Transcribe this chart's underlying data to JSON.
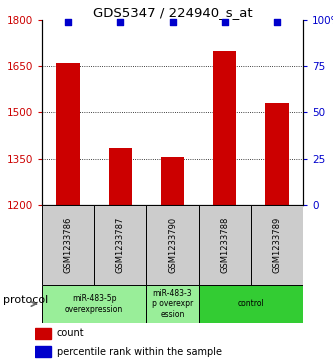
{
  "title": "GDS5347 / 224940_s_at",
  "samples": [
    "GSM1233786",
    "GSM1233787",
    "GSM1233790",
    "GSM1233788",
    "GSM1233789"
  ],
  "counts": [
    1660,
    1385,
    1355,
    1700,
    1530
  ],
  "percentiles": [
    99,
    99,
    99,
    99,
    99
  ],
  "ylim_left": [
    1200,
    1800
  ],
  "ylim_right": [
    0,
    100
  ],
  "yticks_left": [
    1200,
    1350,
    1500,
    1650,
    1800
  ],
  "yticks_right": [
    0,
    25,
    50,
    75,
    100
  ],
  "bar_color": "#cc0000",
  "dot_color": "#0000cc",
  "protocol_groups": [
    {
      "label": "miR-483-5p\noverexpression",
      "start": 0,
      "end": 2,
      "color": "#99ee99"
    },
    {
      "label": "miR-483-3\np overexpr\nession",
      "start": 2,
      "end": 3,
      "color": "#99ee99"
    },
    {
      "label": "control",
      "start": 3,
      "end": 5,
      "color": "#33cc33"
    }
  ],
  "legend_count_label": "count",
  "legend_pct_label": "percentile rank within the sample",
  "protocol_label": "protocol",
  "right_tick_labels": [
    "0",
    "25",
    "50",
    "75",
    "100%"
  ]
}
